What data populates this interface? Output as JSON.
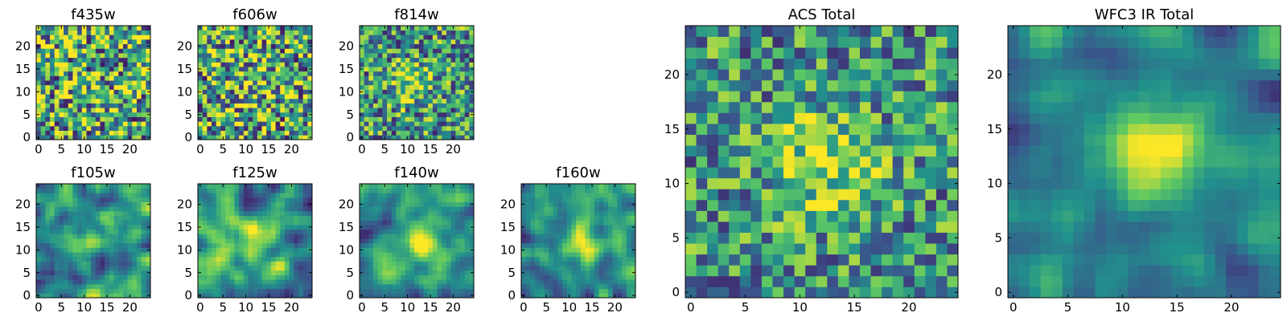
{
  "chart_data": {
    "type": "heatmap",
    "colormap": "viridis",
    "colormap_stops": [
      "#440154",
      "#3b528b",
      "#21918c",
      "#5ec962",
      "#fde725"
    ],
    "panels": [
      {
        "title": "f435w",
        "size": 25,
        "xticks": [
          0,
          5,
          10,
          15,
          20
        ],
        "yticks": [
          0,
          5,
          10,
          15,
          20
        ],
        "pattern": "noise",
        "seed": 11,
        "blob": {
          "x": 10,
          "y": 10,
          "sigma": 4,
          "amplitude": 0.05
        },
        "noise": 0.55
      },
      {
        "title": "f606w",
        "size": 25,
        "xticks": [
          0,
          5,
          10,
          15,
          20
        ],
        "yticks": [
          0,
          5,
          10,
          15,
          20
        ],
        "pattern": "noise",
        "seed": 23,
        "blob": {
          "x": 11,
          "y": 12,
          "sigma": 4,
          "amplitude": 0.1
        },
        "noise": 0.55
      },
      {
        "title": "f814w",
        "size": 25,
        "xticks": [
          0,
          5,
          10,
          15,
          20
        ],
        "yticks": [
          0,
          5,
          10,
          15,
          20
        ],
        "pattern": "noise",
        "seed": 37,
        "blob": {
          "x": 11,
          "y": 12,
          "sigma": 3,
          "amplitude": 0.3
        },
        "noise": 0.5
      },
      {
        "title": "f105w",
        "size": 25,
        "xticks": [
          0,
          5,
          10,
          15,
          20
        ],
        "yticks": [
          0,
          5,
          10,
          15,
          20
        ],
        "pattern": "smooth",
        "seed": 41,
        "blob": {
          "x": 12,
          "y": 13,
          "sigma": 3,
          "amplitude": 0.3
        },
        "noise": 0.5
      },
      {
        "title": "f125w",
        "size": 25,
        "xticks": [
          0,
          5,
          10,
          15,
          20
        ],
        "yticks": [
          0,
          5,
          10,
          15,
          20
        ],
        "pattern": "smooth",
        "seed": 53,
        "blob": {
          "x": 12,
          "y": 12,
          "sigma": 3,
          "amplitude": 0.3
        },
        "noise": 0.5
      },
      {
        "title": "f140w",
        "size": 25,
        "xticks": [
          0,
          5,
          10,
          15,
          20
        ],
        "yticks": [
          0,
          5,
          10,
          15,
          20
        ],
        "pattern": "smooth",
        "seed": 67,
        "blob": {
          "x": 13,
          "y": 12,
          "sigma": 3,
          "amplitude": 0.45
        },
        "noise": 0.45
      },
      {
        "title": "f160w",
        "size": 25,
        "xticks": [
          0,
          5,
          10,
          15,
          20
        ],
        "yticks": [
          0,
          5,
          10,
          15,
          20
        ],
        "pattern": "smooth",
        "seed": 79,
        "blob": {
          "x": 13,
          "y": 12,
          "sigma": 3,
          "amplitude": 0.5
        },
        "noise": 0.45
      },
      {
        "title": "ACS Total",
        "size": 25,
        "xticks": [
          0,
          5,
          10,
          15,
          20
        ],
        "yticks": [
          0,
          5,
          10,
          15,
          20
        ],
        "pattern": "noise",
        "seed": 97,
        "blob": {
          "x": 12,
          "y": 12,
          "sigma": 3.5,
          "amplitude": 0.35
        },
        "noise": 0.45
      },
      {
        "title": "WFC3 IR Total",
        "size": 25,
        "xticks": [
          0,
          5,
          10,
          15,
          20
        ],
        "yticks": [
          0,
          5,
          10,
          15,
          20
        ],
        "pattern": "smooth",
        "seed": 113,
        "blob": {
          "x": 13,
          "y": 13,
          "sigma": 3,
          "amplitude": 0.55
        },
        "noise": 0.4
      }
    ]
  }
}
